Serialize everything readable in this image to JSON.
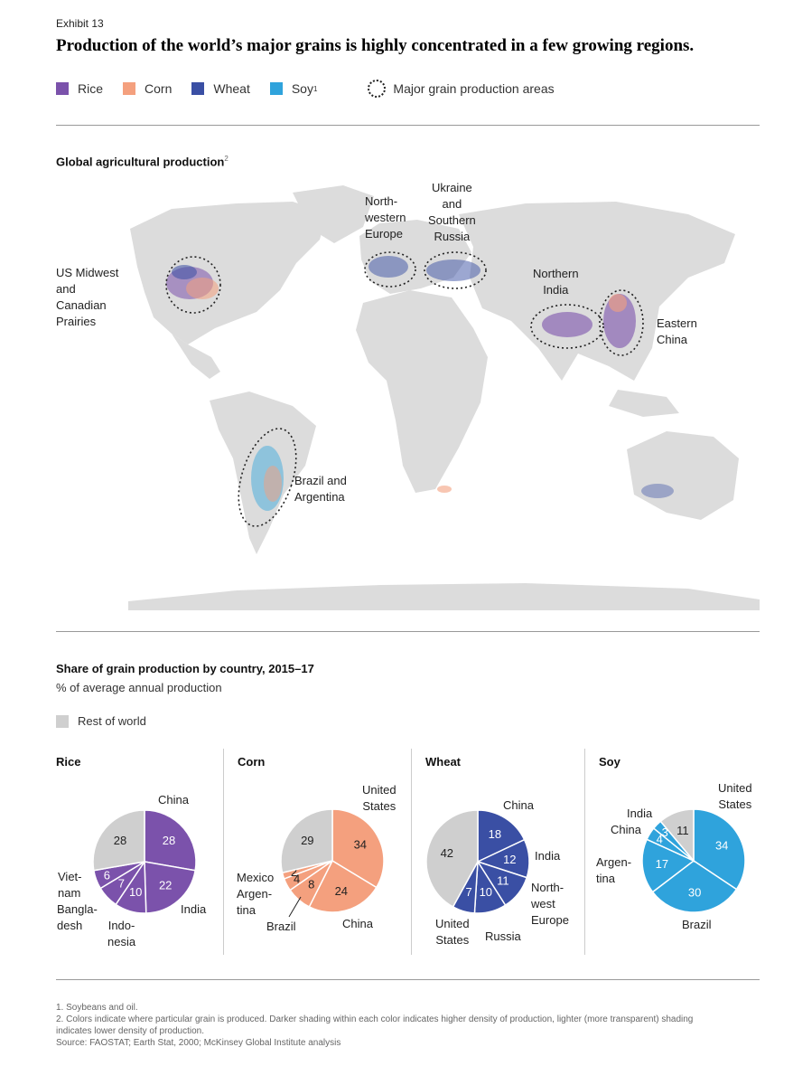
{
  "exhibit": "Exhibit 13",
  "title": "Production of the world’s major grains is highly concentrated in a few growing regions.",
  "legend": {
    "items": [
      {
        "label": "Rice",
        "color": "#7b52ab",
        "sup": ""
      },
      {
        "label": "Corn",
        "color": "#f4a07e",
        "sup": ""
      },
      {
        "label": "Wheat",
        "color": "#3a4fa4",
        "sup": ""
      },
      {
        "label": "Soy",
        "color": "#2fa3dc",
        "sup": "1"
      }
    ],
    "areas_label": "Major grain production areas"
  },
  "map": {
    "heading": "Global agricultural production",
    "heading_sup": "2",
    "regions": [
      "US Midwest\nand\nCanadian\nPrairies",
      "North-\nwestern\nEurope",
      "Ukraine\nand\nSouthern\nRussia",
      "Northern\nIndia",
      "Eastern\nChina",
      "Brazil and\nArgentina"
    ]
  },
  "share": {
    "heading": "Share of grain production by country, 2015–17",
    "subheading": "% of average annual production",
    "rest_label": "Rest of world",
    "rest_color": "#cfcfcf"
  },
  "chart_data": [
    {
      "type": "pie",
      "title": "Rice",
      "color": "#7b52ab",
      "slices": [
        {
          "label": "China",
          "value": 28
        },
        {
          "label": "India",
          "value": 22
        },
        {
          "label": "Indo-\nnesia",
          "value": 10
        },
        {
          "label": "Bangla-\ndesh",
          "value": 7
        },
        {
          "label": "Viet-\nnam",
          "value": 6
        },
        {
          "label": "Rest of world",
          "value": 28,
          "rest": true
        }
      ]
    },
    {
      "type": "pie",
      "title": "Corn",
      "color": "#f4a07e",
      "slices": [
        {
          "label": "United\nStates",
          "value": 34
        },
        {
          "label": "China",
          "value": 24
        },
        {
          "label": "Brazil",
          "value": 8
        },
        {
          "label": "Argen-\ntina",
          "value": 4
        },
        {
          "label": "Mexico",
          "value": 2
        },
        {
          "label": "Rest of world",
          "value": 29,
          "rest": true
        }
      ]
    },
    {
      "type": "pie",
      "title": "Wheat",
      "color": "#3a4fa4",
      "slices": [
        {
          "label": "China",
          "value": 18
        },
        {
          "label": "India",
          "value": 12
        },
        {
          "label": "North-\nwest\nEurope",
          "value": 11
        },
        {
          "label": "Russia",
          "value": 10
        },
        {
          "label": "United\nStates",
          "value": 7
        },
        {
          "label": "Rest of world",
          "value": 42,
          "rest": true
        }
      ]
    },
    {
      "type": "pie",
      "title": "Soy",
      "color": "#2fa3dc",
      "slices": [
        {
          "label": "United\nStates",
          "value": 34
        },
        {
          "label": "Brazil",
          "value": 30
        },
        {
          "label": "Argen-\ntina",
          "value": 17
        },
        {
          "label": "China",
          "value": 4
        },
        {
          "label": "India",
          "value": 3
        },
        {
          "label": "Rest of world",
          "value": 11,
          "rest": true
        }
      ]
    }
  ],
  "footnotes": [
    "1. Soybeans and oil.",
    "2. Colors indicate where particular grain is produced. Darker shading within each color indicates higher density of production, lighter (more transparent) shading indicates lower density of production.",
    "Source: FAOSTAT; Earth Stat, 2000; McKinsey Global Institute analysis"
  ]
}
